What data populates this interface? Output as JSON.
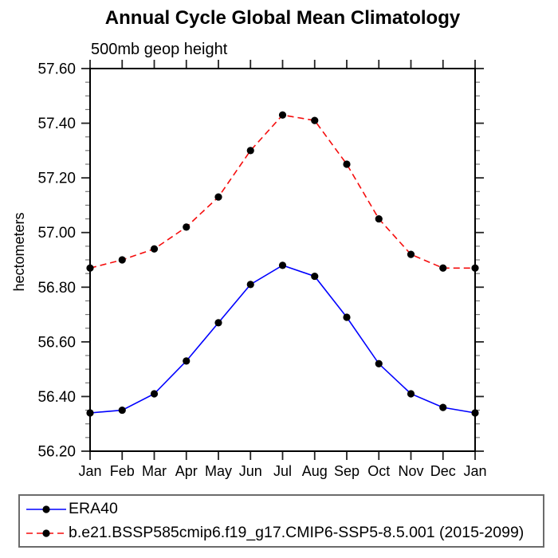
{
  "title": "Annual Cycle Global Mean Climatology",
  "subtitle": "500mb geop height",
  "chart_data": {
    "type": "line",
    "title": "Annual Cycle Global Mean Climatology",
    "subtitle": "500mb geop height",
    "xlabel": "",
    "ylabel": "hectometers",
    "categories": [
      "Jan",
      "Feb",
      "Mar",
      "Apr",
      "May",
      "Jun",
      "Jul",
      "Aug",
      "Sep",
      "Oct",
      "Nov",
      "Dec",
      "Jan"
    ],
    "series": [
      {
        "name": "ERA40",
        "color": "#0000ff",
        "style": "solid",
        "marker": "filled-black-circle",
        "values": [
          56.34,
          56.35,
          56.41,
          56.53,
          56.67,
          56.81,
          56.88,
          56.84,
          56.69,
          56.52,
          56.41,
          56.36,
          56.34
        ]
      },
      {
        "name": "b.e21.BSSP585cmip6.f19_g17.CMIP6-SSP5-8.5.001 (2015-2099)",
        "color": "#f50d0d",
        "style": "dashed",
        "marker": "filled-black-circle",
        "values": [
          56.87,
          56.9,
          56.94,
          57.02,
          57.13,
          57.3,
          57.43,
          57.41,
          57.25,
          57.05,
          56.92,
          56.87,
          56.87
        ]
      }
    ],
    "ylim": [
      56.2,
      57.6
    ],
    "ytick_interval": 0.2,
    "ytick_minor": 0.05,
    "yticks": [
      "57.60",
      "57.40",
      "57.20",
      "57.00",
      "56.80",
      "56.60",
      "56.40",
      "56.20"
    ],
    "grid": false,
    "legend_position": "bottom",
    "marker_color": "#000000",
    "axis_color": "#000000"
  }
}
